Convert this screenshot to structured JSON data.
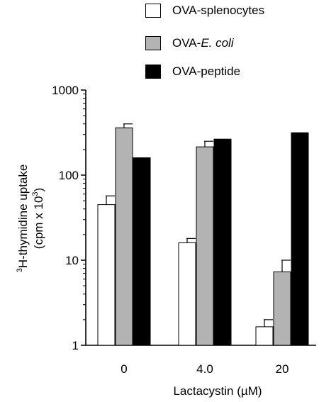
{
  "chart_data": {
    "type": "bar",
    "categories": [
      "0",
      "4.0",
      "20"
    ],
    "series": [
      {
        "name": "OVA-splenocytes",
        "color": "#ffffff",
        "values": [
          45,
          16,
          1.65
        ],
        "errors_upper": [
          57,
          18,
          2.0
        ]
      },
      {
        "name": "OVA-E. coli",
        "name_prefix": "OVA-",
        "name_italic": "E. coli",
        "color": "#b3b3b3",
        "values": [
          360,
          215,
          7.3
        ],
        "errors_upper": [
          400,
          250,
          10
        ]
      },
      {
        "name": "OVA-peptide",
        "color": "#000000",
        "values": [
          160,
          265,
          315
        ],
        "errors_upper": [
          null,
          null,
          null
        ]
      }
    ],
    "y_scale": "log",
    "ylim": [
      1,
      1000
    ],
    "yticks": [
      1,
      10,
      100,
      1000
    ],
    "ytick_labels": [
      "1",
      "10",
      "100",
      "1000"
    ],
    "xlabel": "Lactacystin (µM)",
    "ylabel_line1_sup": "3",
    "ylabel_line1_text": "H-thymidine uptake",
    "ylabel_line2_text": "(cpm x 10",
    "ylabel_line2_sup": "3",
    "ylabel_line2_end": ")",
    "legend_position": "top-right",
    "grid": false
  }
}
